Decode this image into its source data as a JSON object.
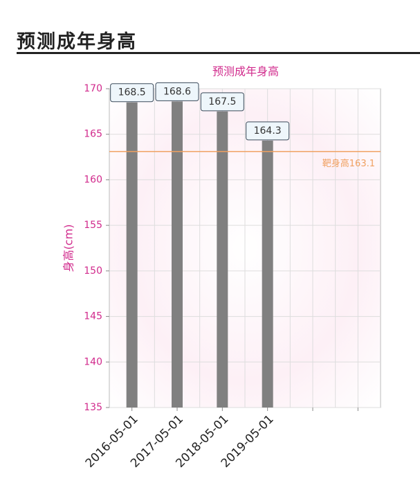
{
  "header": {
    "title": "预测成年身高"
  },
  "chart_data": {
    "type": "bar",
    "title": "预测成年身高",
    "y_label": "身高(cm)",
    "categories": [
      "2016-05-01",
      "2017-05-01",
      "2018-05-01",
      "2019-05-01",
      null,
      null
    ],
    "values": [
      168.5,
      168.6,
      167.5,
      164.3,
      null,
      null
    ],
    "color": "#808080",
    "ylim": [
      135,
      170
    ],
    "yticks": [
      135,
      140,
      145,
      150,
      155,
      160,
      165,
      170
    ],
    "grid": true,
    "target_line": {
      "value": 163.1,
      "label": "靶身高163.1",
      "color": "#f0a060"
    }
  }
}
